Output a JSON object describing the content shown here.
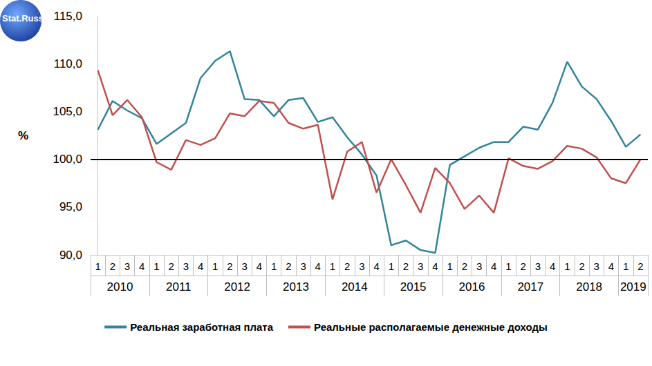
{
  "chart_data": {
    "type": "line",
    "logo": "Stat.Russ",
    "y_label": "%",
    "categories": [
      "1",
      "2",
      "3",
      "4",
      "1",
      "2",
      "3",
      "4",
      "1",
      "2",
      "3",
      "4",
      "1",
      "2",
      "3",
      "4",
      "1",
      "2",
      "3",
      "4",
      "1",
      "2",
      "3",
      "4",
      "1",
      "2",
      "3",
      "4",
      "1",
      "2",
      "3",
      "4",
      "1",
      "2",
      "3",
      "4",
      "1",
      "2"
    ],
    "years": [
      "2010",
      "2010",
      "2010",
      "2010",
      "2011",
      "2011",
      "2011",
      "2011",
      "2012",
      "2012",
      "2012",
      "2012",
      "2013",
      "2013",
      "2013",
      "2013",
      "2014",
      "2014",
      "2014",
      "2014",
      "2015",
      "2015",
      "2015",
      "2015",
      "2016",
      "2016",
      "2016",
      "2016",
      "2017",
      "2017",
      "2017",
      "2017",
      "2018",
      "2018",
      "2018",
      "2018",
      "2019",
      "2019"
    ],
    "series": [
      {
        "name": "Реальная заработная плата",
        "color": "#31849b",
        "values": [
          103.1,
          106.1,
          105.1,
          104.3,
          101.6,
          102.7,
          103.8,
          108.5,
          110.3,
          111.3,
          106.3,
          106.2,
          104.5,
          106.2,
          106.4,
          103.9,
          104.4,
          102.3,
          100.5,
          98.3,
          91.0,
          91.5,
          90.5,
          90.2,
          99.4,
          100.3,
          101.2,
          101.8,
          101.8,
          103.4,
          103.1,
          105.9,
          110.2,
          107.6,
          106.3,
          104.0,
          101.3,
          102.6
        ]
      },
      {
        "name": "Реальные располагаемые денежные доходы",
        "color": "#c0504d",
        "values": [
          109.3,
          104.6,
          106.2,
          104.4,
          99.7,
          98.9,
          102.0,
          101.5,
          102.2,
          104.8,
          104.5,
          106.1,
          105.9,
          103.8,
          103.2,
          103.6,
          95.8,
          100.8,
          101.8,
          96.5,
          100.0,
          97.3,
          94.4,
          99.1,
          97.5,
          94.8,
          96.2,
          94.4,
          100.1,
          99.3,
          99.0,
          99.8,
          101.4,
          101.1,
          100.2,
          98.0,
          97.5,
          100.0
        ]
      }
    ],
    "baseline": 100,
    "ylim": [
      90,
      115
    ],
    "yticks": [
      {
        "value": 90,
        "label": "90,0"
      },
      {
        "value": 95,
        "label": "95,0"
      },
      {
        "value": 100,
        "label": "100,0"
      },
      {
        "value": 105,
        "label": "105,0"
      },
      {
        "value": 110,
        "label": "110,0"
      },
      {
        "value": 115,
        "label": "115,0"
      }
    ],
    "grid": false,
    "legend": "bottom"
  }
}
